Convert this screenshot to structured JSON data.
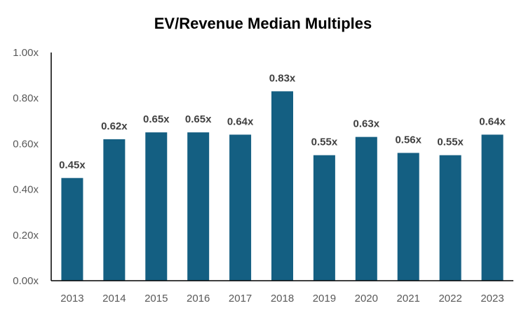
{
  "chart_data": {
    "type": "bar",
    "title": "EV/Revenue Median Multiples",
    "categories": [
      "2013",
      "2014",
      "2015",
      "2016",
      "2017",
      "2018",
      "2019",
      "2020",
      "2021",
      "2022",
      "2023"
    ],
    "values": [
      0.45,
      0.62,
      0.65,
      0.65,
      0.64,
      0.83,
      0.55,
      0.63,
      0.56,
      0.55,
      0.64
    ],
    "data_labels": [
      "0.45x",
      "0.62x",
      "0.65x",
      "0.65x",
      "0.64x",
      "0.83x",
      "0.55x",
      "0.63x",
      "0.56x",
      "0.55x",
      "0.64x"
    ],
    "yticks": [
      0,
      0.2,
      0.4,
      0.6,
      0.8,
      1.0
    ],
    "ytick_labels": [
      "0.00x",
      "0.20x",
      "0.40x",
      "0.60x",
      "0.80x",
      "1.00x"
    ],
    "ylim": [
      0,
      1.0
    ],
    "xlabel": "",
    "ylabel": "",
    "bar_color": "#145f82",
    "grid": false,
    "legend": "none"
  }
}
